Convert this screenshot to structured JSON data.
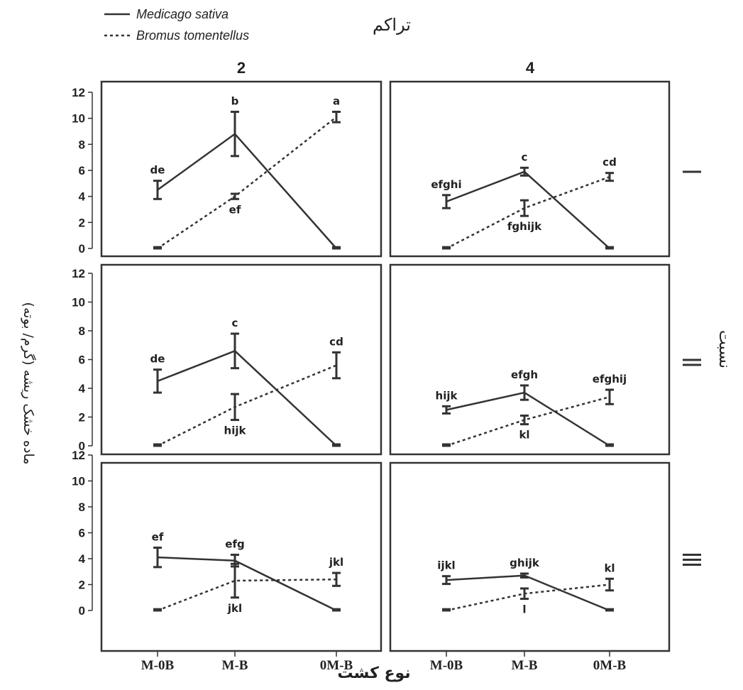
{
  "chart_data": {
    "type": "line",
    "legend": {
      "placement": "top-left",
      "entries": [
        {
          "name": "Medicago sativa",
          "style": "solid"
        },
        {
          "name": "Bromus tomentellus",
          "style": "dotted"
        }
      ]
    },
    "facet_column_title": "تراکم",
    "facet_row_title": "نسبت",
    "xlabel": "نوع کشت",
    "ylabel": "ماده خشک ریشه (گرم/ بوته)",
    "categories": [
      "M-0B",
      "M-B",
      "0M-B"
    ],
    "ylim": [
      0,
      12
    ],
    "yticks": [
      "0",
      "2",
      "4",
      "6",
      "8",
      "10",
      "12"
    ],
    "columns": [
      "2",
      "4"
    ],
    "rows": [
      "I",
      "II",
      "III"
    ],
    "line_color": "#333333",
    "panels": [
      {
        "row": 0,
        "col": 0,
        "series": [
          {
            "name": "Medicago sativa",
            "values": [
              4.5,
              8.8,
              0
            ],
            "err": [
              0.7,
              1.7,
              0.1
            ],
            "letters": [
              "de",
              "b",
              ""
            ]
          },
          {
            "name": "Bromus tomentellus",
            "values": [
              0,
              4.0,
              10.1
            ],
            "err": [
              0.1,
              0.2,
              0.4
            ],
            "letters": [
              "",
              "ef",
              "a"
            ]
          }
        ]
      },
      {
        "row": 0,
        "col": 1,
        "series": [
          {
            "name": "Medicago sativa",
            "values": [
              3.6,
              5.9,
              0
            ],
            "err": [
              0.5,
              0.3,
              0.1
            ],
            "letters": [
              "efghi",
              "c",
              ""
            ]
          },
          {
            "name": "Bromus tomentellus",
            "values": [
              0,
              3.1,
              5.5
            ],
            "err": [
              0.1,
              0.6,
              0.3
            ],
            "letters": [
              "",
              "fghijk",
              "cd"
            ]
          }
        ]
      },
      {
        "row": 1,
        "col": 0,
        "series": [
          {
            "name": "Medicago sativa",
            "values": [
              4.5,
              6.6,
              0
            ],
            "err": [
              0.8,
              1.2,
              0.1
            ],
            "letters": [
              "de",
              "c",
              ""
            ]
          },
          {
            "name": "Bromus tomentellus",
            "values": [
              0,
              2.7,
              5.6
            ],
            "err": [
              0.1,
              0.9,
              0.9
            ],
            "letters": [
              "",
              "hijk",
              "cd"
            ]
          }
        ]
      },
      {
        "row": 1,
        "col": 1,
        "series": [
          {
            "name": "Medicago sativa",
            "values": [
              2.5,
              3.7,
              0
            ],
            "err": [
              0.25,
              0.5,
              0.1
            ],
            "letters": [
              "hijk",
              "efgh",
              ""
            ]
          },
          {
            "name": "Bromus tomentellus",
            "values": [
              0,
              1.8,
              3.4
            ],
            "err": [
              0.1,
              0.3,
              0.5
            ],
            "letters": [
              "",
              "kl",
              "efghij"
            ]
          }
        ]
      },
      {
        "row": 2,
        "col": 0,
        "series": [
          {
            "name": "Medicago sativa",
            "values": [
              4.1,
              3.85,
              0
            ],
            "err": [
              0.75,
              0.45,
              0.1
            ],
            "letters": [
              "ef",
              "efg",
              ""
            ]
          },
          {
            "name": "Bromus tomentellus",
            "values": [
              0,
              2.3,
              2.4
            ],
            "err": [
              0.1,
              1.3,
              0.5
            ],
            "letters": [
              "",
              "jkl",
              "jkl"
            ]
          }
        ]
      },
      {
        "row": 2,
        "col": 1,
        "series": [
          {
            "name": "Medicago sativa",
            "values": [
              2.35,
              2.7,
              0
            ],
            "err": [
              0.3,
              0.15,
              0.1
            ],
            "letters": [
              "ijkl",
              "ghijk",
              ""
            ]
          },
          {
            "name": "Bromus tomentellus",
            "values": [
              0,
              1.3,
              2.0
            ],
            "err": [
              0.1,
              0.4,
              0.45
            ],
            "letters": [
              "",
              "l",
              "kl"
            ]
          }
        ]
      }
    ]
  }
}
